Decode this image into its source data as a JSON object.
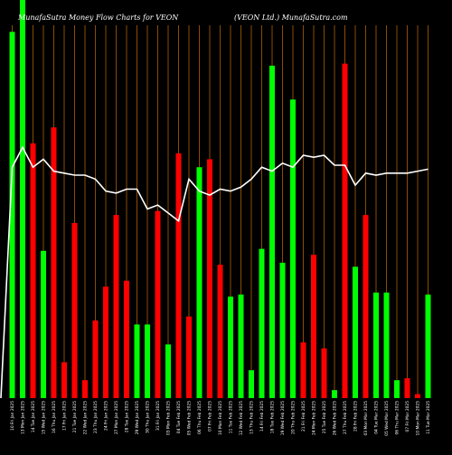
{
  "chart_data": {
    "type": "bar",
    "title": "MunafaSutra  Money Flow  Charts for VEON",
    "subtitle": "(VEON  Ltd.) MunafaSutra.com",
    "colors": {
      "background": "#000000",
      "up": "#00ff00",
      "down": "#ff0000",
      "line": "#ffffff",
      "grid": "#b06000"
    },
    "categories": [
      "10 Fri Jan 2025",
      "13 Mon Jan 2025",
      "14 Tue Jan 2025",
      "15 Wed Jan 2025",
      "16 Thu Jan 2025",
      "17 Fri Jan 2025",
      "21 Tue Jan 2025",
      "22 Wed Jan 2025",
      "23 Thu Jan 2025",
      "24 Fri Jan 2025",
      "27 Mon Jan 2025",
      "28 Tue Jan 2025",
      "29 Wed Jan 2025",
      "30 Thu Jan 2025",
      "31 Fri Jan 2025",
      "03 Mon Feb 2025",
      "04 Tue Feb 2025",
      "05 Wed Feb 2025",
      "06 Thu Feb 2025",
      "07 Fri Feb 2025",
      "10 Mon Feb 2025",
      "11 Tue Feb 2025",
      "12 Wed Feb 2025",
      "13 Thu Feb 2025",
      "14 Fri Feb 2025",
      "18 Tue Feb 2025",
      "19 Wed Feb 2025",
      "20 Thu Feb 2025",
      "21 Fri Feb 2025",
      "24 Mon Feb 2025",
      "25 Tue Feb 2025",
      "26 Wed Feb 2025",
      "27 Thu Feb 2025",
      "28 Fri Feb 2025",
      "03 Mon Mar 2025",
      "04 Tue Mar 2025",
      "05 Wed Mar 2025",
      "06 Thu Mar 2025",
      "07 Fri Mar 2025",
      "10 Mon Mar 2025",
      "11 Tue Mar 2025"
    ],
    "bars": [
      {
        "value": 92,
        "dir": "up"
      },
      {
        "value": 100,
        "dir": "up"
      },
      {
        "value": 64,
        "dir": "down"
      },
      {
        "value": 37,
        "dir": "up"
      },
      {
        "value": 68,
        "dir": "down"
      },
      {
        "value": 9,
        "dir": "down"
      },
      {
        "value": 44,
        "dir": "down"
      },
      {
        "value": 4.5,
        "dir": "down"
      },
      {
        "value": 19.5,
        "dir": "down"
      },
      {
        "value": 28,
        "dir": "down"
      },
      {
        "value": 46,
        "dir": "down"
      },
      {
        "value": 29.5,
        "dir": "down"
      },
      {
        "value": 18.5,
        "dir": "up"
      },
      {
        "value": 18.5,
        "dir": "up"
      },
      {
        "value": 47,
        "dir": "down"
      },
      {
        "value": 13.5,
        "dir": "up"
      },
      {
        "value": 61.5,
        "dir": "down"
      },
      {
        "value": 20.5,
        "dir": "down"
      },
      {
        "value": 58,
        "dir": "up"
      },
      {
        "value": 60,
        "dir": "down"
      },
      {
        "value": 33.5,
        "dir": "down"
      },
      {
        "value": 25.5,
        "dir": "up"
      },
      {
        "value": 26,
        "dir": "up"
      },
      {
        "value": 7,
        "dir": "up"
      },
      {
        "value": 37.5,
        "dir": "up"
      },
      {
        "value": 83.5,
        "dir": "up"
      },
      {
        "value": 34,
        "dir": "up"
      },
      {
        "value": 75,
        "dir": "up"
      },
      {
        "value": 14,
        "dir": "down"
      },
      {
        "value": 36,
        "dir": "down"
      },
      {
        "value": 12.5,
        "dir": "down"
      },
      {
        "value": 2,
        "dir": "up"
      },
      {
        "value": 84,
        "dir": "down"
      },
      {
        "value": 33,
        "dir": "up"
      },
      {
        "value": 46,
        "dir": "down"
      },
      {
        "value": 26.5,
        "dir": "up"
      },
      {
        "value": 26.5,
        "dir": "up"
      },
      {
        "value": 4.5,
        "dir": "up"
      },
      {
        "value": 5,
        "dir": "down"
      },
      {
        "value": 1,
        "dir": "down"
      },
      {
        "value": 26,
        "dir": "up"
      }
    ],
    "line": [
      58,
      63,
      58,
      60,
      57,
      56.5,
      56,
      56,
      55,
      52,
      51.5,
      52.5,
      52.5,
      47.5,
      48.5,
      46.5,
      44.5,
      55,
      52,
      51,
      52.5,
      52,
      53,
      55,
      58,
      57,
      59,
      58,
      61,
      60.5,
      61,
      58.5,
      58.5,
      53.5,
      56.5,
      56,
      56.5,
      56.5,
      56.5,
      57,
      57.5
    ],
    "ylim": [
      0,
      100
    ],
    "grid": true,
    "legend": "none"
  }
}
